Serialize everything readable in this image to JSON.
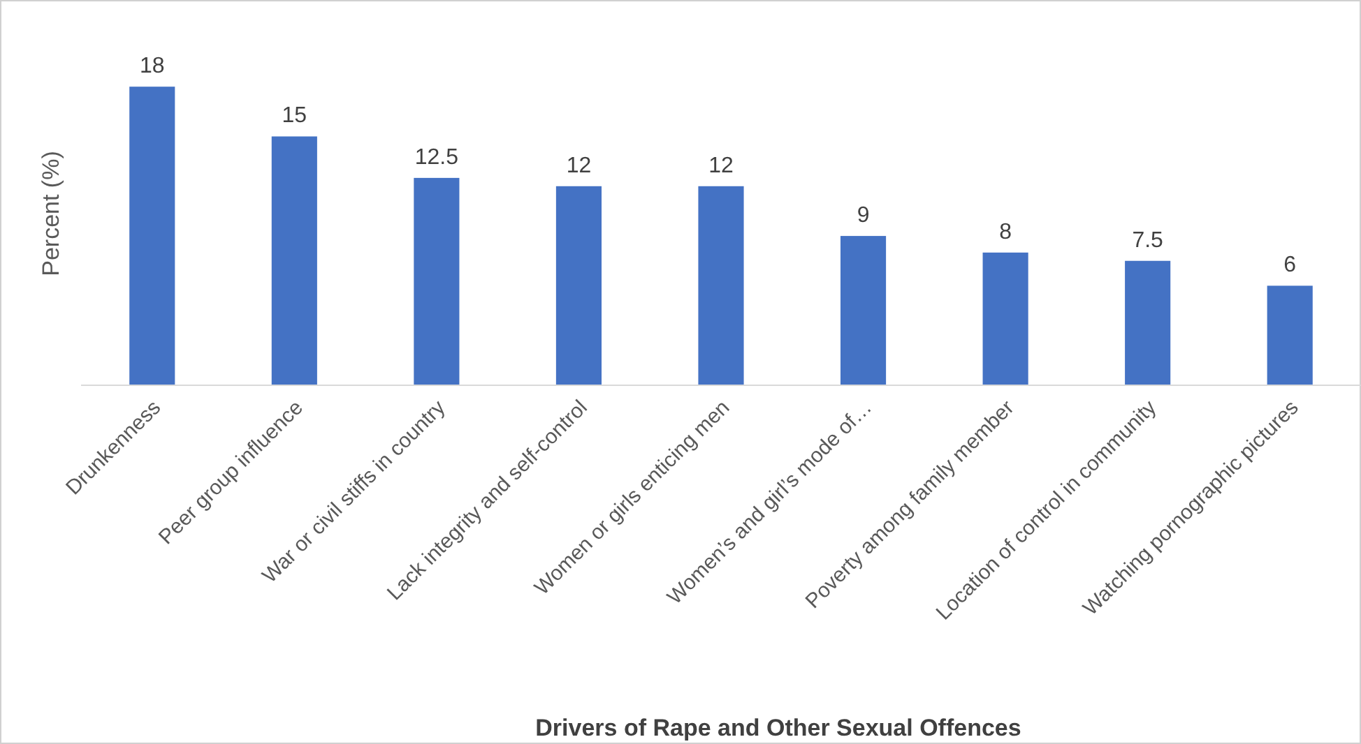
{
  "chart_data": {
    "type": "bar",
    "xlabel": "Drivers of Rape and Other Sexual Offences",
    "ylabel": "Percent (%)",
    "categories": [
      "Drunkenness",
      "Peer group influence",
      "War or civil stiffs in country",
      "Lack integrity and self-control",
      "Women or girls enticing men",
      "Women’s and girl’s mode of…",
      "Poverty among family member",
      "Location of control in community",
      "Watching pornographic pictures"
    ],
    "values": [
      18,
      15,
      12.5,
      12,
      12,
      9,
      8,
      7.5,
      6
    ],
    "color": "#4472c4",
    "data_labels": true,
    "tick_labels": "x"
  }
}
